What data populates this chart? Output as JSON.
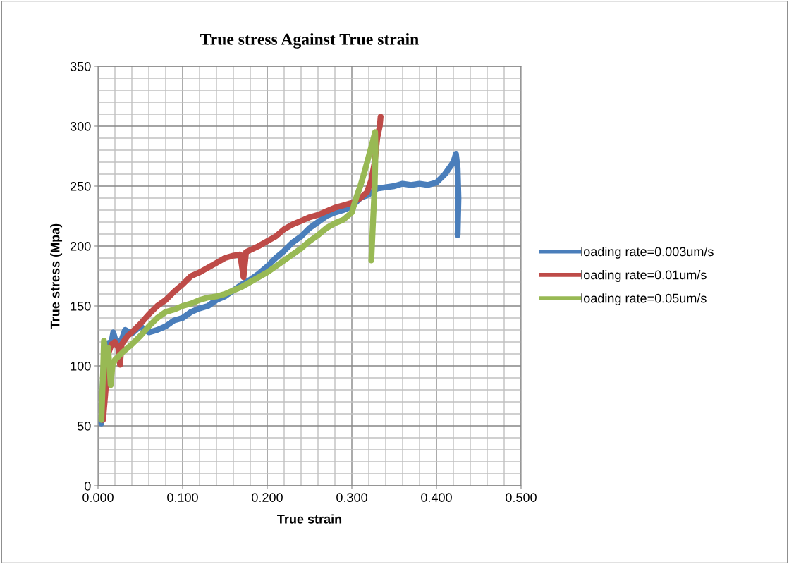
{
  "chart_data": {
    "type": "line",
    "title": "True stress Against True strain",
    "xlabel": "True strain",
    "ylabel": "True stress (Mpa)",
    "xlim": [
      0,
      0.5
    ],
    "ylim": [
      0,
      350
    ],
    "xticks": [
      {
        "value": 0,
        "label": "0.000"
      },
      {
        "value": 0.1,
        "label": "0.100"
      },
      {
        "value": 0.2,
        "label": "0.200"
      },
      {
        "value": 0.3,
        "label": "0.300"
      },
      {
        "value": 0.4,
        "label": "0.400"
      },
      {
        "value": 0.5,
        "label": "0.500"
      }
    ],
    "yticks": [
      0,
      50,
      100,
      150,
      200,
      250,
      300,
      350
    ],
    "grid": true,
    "legend": "right",
    "marker": "none",
    "line_style": "solid",
    "series": [
      {
        "name": "loading rate=0.003um/s",
        "color": "#4a7ebb",
        "x": [
          0.004,
          0.006,
          0.008,
          0.016,
          0.018,
          0.022,
          0.028,
          0.032,
          0.04,
          0.05,
          0.06,
          0.07,
          0.08,
          0.09,
          0.1,
          0.11,
          0.12,
          0.13,
          0.14,
          0.15,
          0.16,
          0.17,
          0.18,
          0.19,
          0.2,
          0.21,
          0.22,
          0.23,
          0.24,
          0.25,
          0.26,
          0.27,
          0.28,
          0.29,
          0.3,
          0.31,
          0.32,
          0.33,
          0.34,
          0.35,
          0.36,
          0.37,
          0.38,
          0.39,
          0.4,
          0.41,
          0.42,
          0.423,
          0.425,
          0.426,
          0.425
        ],
        "values": [
          52,
          90,
          118,
          120,
          128,
          118,
          122,
          130,
          127,
          133,
          128,
          130,
          133,
          138,
          140,
          145,
          148,
          150,
          155,
          158,
          163,
          168,
          172,
          177,
          183,
          190,
          196,
          203,
          208,
          215,
          220,
          225,
          228,
          230,
          233,
          240,
          243,
          248,
          249,
          250,
          252,
          251,
          252,
          251,
          253,
          260,
          270,
          277,
          265,
          240,
          209
        ]
      },
      {
        "name": "loading rate=0.01um/s",
        "color": "#be4b48",
        "x": [
          0.006,
          0.009,
          0.012,
          0.016,
          0.02,
          0.024,
          0.026,
          0.028,
          0.035,
          0.04,
          0.05,
          0.06,
          0.07,
          0.08,
          0.09,
          0.1,
          0.11,
          0.12,
          0.13,
          0.14,
          0.15,
          0.16,
          0.168,
          0.172,
          0.175,
          0.19,
          0.2,
          0.21,
          0.22,
          0.23,
          0.24,
          0.25,
          0.26,
          0.27,
          0.28,
          0.29,
          0.3,
          0.31,
          0.318,
          0.323,
          0.327,
          0.33,
          0.333,
          0.334
        ],
        "values": [
          55,
          80,
          110,
          118,
          120,
          115,
          101,
          118,
          125,
          128,
          135,
          143,
          150,
          155,
          162,
          168,
          175,
          178,
          182,
          186,
          190,
          192,
          193,
          174,
          195,
          200,
          204,
          208,
          214,
          218,
          221,
          224,
          226,
          229,
          232,
          234,
          236,
          240,
          245,
          255,
          270,
          290,
          300,
          308
        ]
      },
      {
        "name": "loading rate=0.05um/s",
        "color": "#98b954",
        "x": [
          0.004,
          0.006,
          0.007,
          0.01,
          0.012,
          0.015,
          0.017,
          0.02,
          0.03,
          0.04,
          0.05,
          0.06,
          0.07,
          0.08,
          0.09,
          0.1,
          0.11,
          0.12,
          0.13,
          0.14,
          0.15,
          0.16,
          0.17,
          0.18,
          0.19,
          0.2,
          0.21,
          0.22,
          0.23,
          0.24,
          0.25,
          0.26,
          0.27,
          0.28,
          0.29,
          0.3,
          0.305,
          0.31,
          0.315,
          0.32,
          0.325,
          0.3275,
          0.328,
          0.327,
          0.325,
          0.323
        ],
        "values": [
          55,
          95,
          121,
          105,
          115,
          84,
          100,
          105,
          112,
          118,
          125,
          133,
          140,
          145,
          147,
          150,
          152,
          155,
          157,
          158,
          160,
          163,
          166,
          170,
          174,
          178,
          183,
          188,
          193,
          198,
          204,
          209,
          215,
          219,
          222,
          228,
          240,
          250,
          262,
          275,
          288,
          295,
          280,
          250,
          220,
          188
        ]
      }
    ]
  }
}
